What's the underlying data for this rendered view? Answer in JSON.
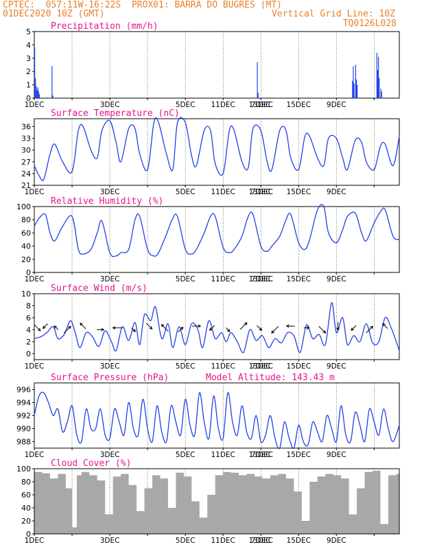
{
  "header": {
    "line1_left": "CPTEC:  057:11W-16:22S  PROX01: BARRA DO BUGRES (MT)",
    "line2_left": "01DEC2020 10Z (GMT)",
    "line2_right": "Vertical Grid Line: 10Z",
    "line3_right": "TQ0126L028"
  },
  "colors": {
    "header": "#e8812a",
    "title": "#e8128c",
    "series": "#1f3fe6",
    "cloud": "#a8a8a8"
  },
  "chart_data": [
    {
      "id": "precip",
      "type": "bar",
      "title": "Precipitation (mm/h)",
      "ylim": [
        0,
        5
      ],
      "yticks": [
        0,
        1,
        2,
        3,
        4,
        5
      ],
      "x_tick_labels": [
        "1DEC",
        "3DEC",
        "5DEC",
        "7DEC",
        "9DEC",
        "11DEC",
        "13DEC",
        "15DEC"
      ],
      "x_unit": "hours since 01DEC2020 10Z",
      "bars": [
        [
          0,
          3.8
        ],
        [
          1,
          1.5
        ],
        [
          2,
          0.9
        ],
        [
          3,
          0.6
        ],
        [
          4,
          0.8
        ],
        [
          5,
          0.5
        ],
        [
          6,
          0.3
        ],
        [
          22,
          2.4
        ],
        [
          23,
          0.2
        ],
        [
          283,
          2.7
        ],
        [
          284,
          0.4
        ],
        [
          404,
          1.3
        ],
        [
          405,
          2.4
        ],
        [
          406,
          1.1
        ],
        [
          408,
          2.5
        ],
        [
          409,
          1.4
        ],
        [
          410,
          1.0
        ],
        [
          435,
          3.4
        ],
        [
          436,
          2.1
        ],
        [
          437,
          3.1
        ],
        [
          438,
          1.5
        ],
        [
          440,
          0.7
        ],
        [
          441,
          0.5
        ]
      ]
    },
    {
      "id": "temp",
      "type": "line",
      "title": "Surface Temperature (nC)",
      "ylim": [
        21,
        38
      ],
      "yticks": [
        21,
        24,
        27,
        30,
        33,
        36
      ],
      "x_tick_labels": [
        "1DEC",
        "3DEC",
        "5DEC",
        "7DEC",
        "9DEC",
        "11DEC",
        "13DEC",
        "15DEC"
      ],
      "x": [
        0,
        6,
        12,
        20,
        26,
        36,
        48,
        56,
        62,
        72,
        80,
        86,
        96,
        104,
        110,
        120,
        128,
        134,
        144,
        152,
        158,
        168,
        176,
        182,
        192,
        200,
        206,
        216,
        224,
        230,
        240,
        248,
        254,
        264,
        272,
        278,
        288,
        296,
        302,
        312,
        320,
        326,
        336,
        344,
        350,
        360,
        368,
        374,
        384,
        392,
        398,
        408,
        416,
        422,
        432,
        440,
        446,
        456,
        464
      ],
      "values": [
        26,
        23.5,
        22.5,
        29,
        31.5,
        27,
        24.5,
        35,
        36,
        30,
        28,
        35,
        37.5,
        32,
        27,
        35.5,
        35.5,
        29,
        25,
        37,
        37,
        29,
        25,
        37,
        37,
        28.5,
        26,
        35,
        35,
        26.5,
        24,
        35,
        35,
        27,
        25.5,
        35.5,
        35,
        27,
        25,
        35,
        35,
        28,
        25,
        33.5,
        33.5,
        28,
        26,
        33,
        33,
        28,
        25,
        32.5,
        32,
        27,
        25,
        31,
        31.5,
        26,
        33.5
      ]
    },
    {
      "id": "rh",
      "type": "line",
      "title": "Relative Humidity (%)",
      "ylim": [
        0,
        100
      ],
      "yticks": [
        0,
        20,
        40,
        60,
        80,
        100
      ],
      "x_tick_labels": [
        "1DEC",
        "3DEC",
        "5DEC",
        "7DEC",
        "9DEC",
        "11DEC",
        "13DEC",
        "15DEC"
      ],
      "x": [
        0,
        6,
        14,
        20,
        26,
        36,
        48,
        56,
        62,
        72,
        80,
        86,
        96,
        104,
        110,
        120,
        128,
        134,
        144,
        152,
        158,
        168,
        176,
        182,
        192,
        200,
        206,
        216,
        224,
        230,
        240,
        248,
        254,
        264,
        272,
        278,
        288,
        296,
        302,
        312,
        320,
        326,
        336,
        344,
        350,
        360,
        368,
        374,
        384,
        392,
        398,
        408,
        416,
        422,
        432,
        440,
        446,
        456,
        464
      ],
      "values": [
        70,
        82,
        88,
        60,
        48,
        70,
        85,
        35,
        28,
        35,
        60,
        78,
        30,
        25,
        30,
        35,
        80,
        85,
        35,
        25,
        30,
        58,
        82,
        85,
        35,
        28,
        35,
        60,
        85,
        85,
        38,
        30,
        35,
        55,
        85,
        88,
        40,
        32,
        40,
        55,
        80,
        88,
        45,
        35,
        50,
        95,
        100,
        60,
        45,
        65,
        85,
        90,
        60,
        48,
        75,
        92,
        95,
        55,
        50
      ]
    },
    {
      "id": "wind",
      "type": "line",
      "title": "Surface Wind (m/s)",
      "ylim": [
        -1,
        10
      ],
      "yticks": [
        0,
        2,
        4,
        6,
        8,
        10
      ],
      "x_tick_labels": [
        "1DEC",
        "3DEC",
        "5DEC",
        "7DEC",
        "9DEC",
        "11DEC",
        "13DEC",
        "15DEC"
      ],
      "x": [
        0,
        8,
        16,
        24,
        30,
        38,
        46,
        52,
        58,
        66,
        74,
        82,
        90,
        98,
        104,
        112,
        120,
        128,
        134,
        140,
        148,
        154,
        162,
        170,
        176,
        184,
        192,
        200,
        208,
        214,
        222,
        230,
        238,
        244,
        250,
        258,
        266,
        274,
        282,
        290,
        298,
        306,
        314,
        322,
        330,
        338,
        346,
        354,
        362,
        370,
        378,
        384,
        392,
        398,
        406,
        414,
        422,
        430,
        438,
        446,
        454,
        464
      ],
      "values": [
        2.5,
        2.8,
        3.5,
        4.5,
        2.5,
        3.2,
        5.5,
        3.5,
        1.0,
        3.5,
        2.8,
        1.2,
        3.8,
        2.0,
        0.5,
        4.5,
        2.2,
        5.2,
        1.5,
        6.5,
        5.5,
        7.8,
        2.5,
        5.0,
        1.0,
        4.5,
        1.5,
        5.0,
        4.0,
        1.0,
        5.5,
        2.5,
        3.5,
        2.0,
        3.5,
        2.0,
        0.2,
        4.0,
        2.2,
        3.0,
        1.0,
        2.5,
        1.8,
        3.5,
        3.0,
        0.2,
        4.8,
        2.5,
        3.2,
        1.5,
        8.5,
        3.5,
        6.0,
        1.5,
        3.0,
        2.0,
        5.0,
        1.8,
        2.0,
        6.0,
        4.2,
        0.5
      ],
      "arrows": [
        [
          4,
          3,
          "SE"
        ],
        [
          14,
          2,
          "SW"
        ],
        [
          28,
          1,
          "NW"
        ],
        [
          42,
          4,
          "NE"
        ],
        [
          62,
          3,
          "NW"
        ],
        [
          84,
          2,
          "E"
        ],
        [
          106,
          4,
          "W"
        ],
        [
          126,
          1,
          "SE"
        ],
        [
          146,
          3,
          "SE"
        ],
        [
          166,
          4,
          "NW"
        ],
        [
          186,
          2,
          "NE"
        ],
        [
          206,
          3,
          "E"
        ],
        [
          226,
          2,
          "SW"
        ],
        [
          246,
          1,
          "SE"
        ],
        [
          266,
          4,
          "NE"
        ],
        [
          286,
          2,
          "SE"
        ],
        [
          306,
          4,
          "SW"
        ],
        [
          326,
          3,
          "W"
        ],
        [
          346,
          1,
          "E"
        ],
        [
          366,
          4,
          "SE"
        ],
        [
          386,
          3,
          "S"
        ],
        [
          406,
          2,
          "SW"
        ],
        [
          426,
          4,
          "NE"
        ],
        [
          446,
          2,
          "NW"
        ]
      ]
    },
    {
      "id": "pres",
      "type": "line",
      "title": "Surface Pressure (hPa)",
      "annotation": "Model Altitude: 143.43 m",
      "ylim": [
        987,
        997
      ],
      "yticks": [
        988,
        990,
        992,
        994,
        996
      ],
      "x_tick_labels": [
        "1DEC",
        "3DEC",
        "5DEC",
        "7DEC",
        "9DEC",
        "11DEC",
        "13DEC",
        "15DEC"
      ],
      "x": [
        0,
        6,
        12,
        18,
        24,
        30,
        36,
        42,
        48,
        54,
        60,
        66,
        72,
        78,
        84,
        90,
        96,
        102,
        108,
        114,
        120,
        126,
        132,
        138,
        144,
        150,
        156,
        162,
        168,
        174,
        180,
        186,
        192,
        198,
        204,
        210,
        216,
        222,
        228,
        234,
        240,
        246,
        252,
        258,
        264,
        270,
        276,
        282,
        288,
        294,
        300,
        306,
        312,
        318,
        324,
        330,
        336,
        342,
        348,
        354,
        360,
        366,
        372,
        378,
        384,
        390,
        396,
        402,
        408,
        414,
        420,
        426,
        432,
        438,
        444,
        450,
        456,
        464
      ],
      "values": [
        992,
        995,
        995.5,
        994,
        992,
        993,
        989.5,
        991,
        993.5,
        989,
        988,
        993,
        990,
        990,
        993,
        989,
        988.5,
        993,
        991,
        989,
        994,
        990,
        989,
        994.5,
        990,
        988,
        993.5,
        989.5,
        988,
        993.5,
        991,
        989,
        994.5,
        990.5,
        989,
        995.5,
        991,
        988.5,
        995,
        990,
        988.5,
        995.5,
        991,
        989,
        993.5,
        989.5,
        988.5,
        992,
        988,
        989,
        992,
        988.5,
        987,
        991,
        988.5,
        987,
        990.5,
        988,
        987.5,
        991,
        989.5,
        988,
        992,
        990,
        988,
        993.5,
        989,
        988,
        992.5,
        990.5,
        988,
        993,
        991,
        989,
        993,
        990,
        988,
        990.5
      ]
    },
    {
      "id": "cloud",
      "type": "bar",
      "title": "Cloud Cover (%)",
      "ylim": [
        0,
        100
      ],
      "yticks": [
        0,
        20,
        40,
        60,
        80,
        100
      ],
      "x_tick_labels": [
        "1DEC",
        "3DEC",
        "5DEC",
        "7DEC",
        "9DEC",
        "11DEC",
        "13DEC",
        "15DEC"
      ],
      "x": [
        0,
        10,
        20,
        30,
        40,
        48,
        54,
        60,
        70,
        80,
        90,
        100,
        110,
        120,
        130,
        140,
        150,
        160,
        170,
        180,
        190,
        200,
        210,
        220,
        230,
        240,
        250,
        260,
        270,
        280,
        290,
        300,
        310,
        320,
        330,
        340,
        350,
        360,
        370,
        380,
        390,
        400,
        410,
        420,
        430,
        440,
        450,
        460,
        464
      ],
      "values": [
        95,
        93,
        85,
        92,
        70,
        10,
        90,
        95,
        90,
        82,
        30,
        88,
        92,
        75,
        35,
        70,
        90,
        85,
        40,
        94,
        88,
        50,
        25,
        60,
        90,
        95,
        94,
        90,
        92,
        88,
        85,
        90,
        92,
        85,
        65,
        20,
        80,
        88,
        92,
        90,
        85,
        30,
        70,
        95,
        97,
        15,
        90,
        92,
        80
      ]
    }
  ]
}
